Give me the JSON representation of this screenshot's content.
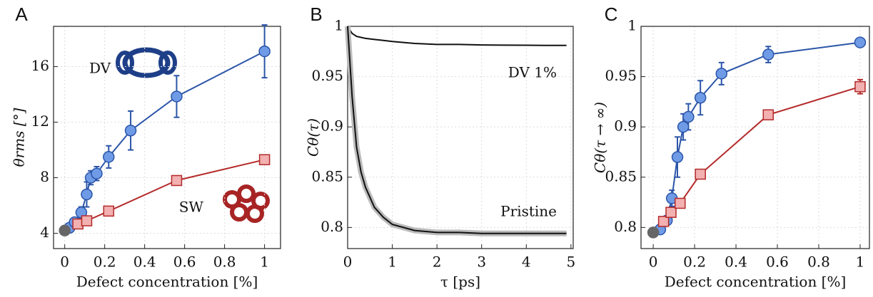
{
  "chart_data": [
    {
      "type": "line",
      "title": "A",
      "x_label": "Defect concentration [%]",
      "y_label": "θrms [°]",
      "xlim": [
        -0.056,
        1.08
      ],
      "ylim": [
        2.9,
        18.9
      ],
      "xticks": [
        0,
        0.2,
        0.4,
        0.6,
        0.8,
        1
      ],
      "yticks": [
        4,
        8,
        12,
        16
      ],
      "grid": true,
      "series": [
        {
          "name": "DV",
          "color": "#2b55a8",
          "marker": "circle",
          "marker_color": "#6f9be6",
          "x": [
            0.024,
            0.05,
            0.083,
            0.11,
            0.13,
            0.16,
            0.22,
            0.33,
            0.56,
            1
          ],
          "values": [
            4.4,
            4.8,
            5.5,
            6.8,
            8.0,
            8.3,
            9.5,
            11.4,
            13.85,
            17.1
          ],
          "errors": [
            null,
            null,
            0.4,
            0.9,
            0.5,
            0.5,
            0.8,
            1.4,
            1.5,
            1.9
          ]
        },
        {
          "name": "SW",
          "color": "#b52a2a",
          "marker": "square",
          "marker_color": "#f2b0b0",
          "x": [
            0.066,
            0.11,
            0.22,
            0.56,
            1
          ],
          "values": [
            4.67,
            4.9,
            5.6,
            7.8,
            9.3
          ],
          "errors": [
            null,
            null,
            null,
            null,
            null
          ]
        },
        {
          "color": "#666666",
          "marker": "circle",
          "marker_color": "#666666",
          "x": [
            0
          ],
          "values": [
            4.2
          ],
          "errors": [
            null
          ]
        }
      ]
    },
    {
      "type": "line",
      "title": "B",
      "x_label": "τ [ps]",
      "y_label": "Cθ(τ)",
      "xlim": [
        0,
        5.05
      ],
      "ylim": [
        0.779,
        1
      ],
      "xticks": [
        0,
        1,
        2,
        3,
        4,
        5
      ],
      "yticks": [
        0.8,
        0.85,
        0.9,
        0.95,
        1
      ],
      "grid": true,
      "x": [
        0,
        0.1,
        0.2,
        0.3,
        0.4,
        0.6,
        0.8,
        1,
        1.5,
        2,
        2.5,
        3,
        3.5,
        4,
        4.5,
        4.9
      ],
      "series": [
        {
          "name": "DV 1%",
          "color": "#111111",
          "values": [
            1,
            0.993,
            0.99,
            0.989,
            0.988,
            0.987,
            0.986,
            0.985,
            0.983,
            0.982,
            0.982,
            0.9815,
            0.9813,
            0.9812,
            0.981,
            0.981
          ]
        },
        {
          "name": "Pristine",
          "color": "#111111",
          "band": true,
          "values": [
            1,
            0.93,
            0.88,
            0.855,
            0.84,
            0.82,
            0.81,
            0.803,
            0.797,
            0.795,
            0.795,
            0.794,
            0.794,
            0.794,
            0.794,
            0.794
          ]
        }
      ]
    },
    {
      "type": "line",
      "title": "C",
      "x_label": "Defect concentration [%]",
      "y_label": "Cθ(τ → ∞)",
      "xlim": [
        -0.059,
        1.045
      ],
      "ylim": [
        0.779,
        1
      ],
      "xticks": [
        0,
        0.2,
        0.4,
        0.6,
        0.8,
        1
      ],
      "yticks": [
        0.8,
        0.85,
        0.9,
        0.95,
        1
      ],
      "grid": true,
      "series": [
        {
          "color": "#2b55a8",
          "marker": "circle",
          "marker_color": "#6f9be6",
          "x": [
            0.034,
            0.066,
            0.09,
            0.117,
            0.145,
            0.17,
            0.228,
            0.33,
            0.556,
            1
          ],
          "values": [
            0.798,
            0.807,
            0.829,
            0.87,
            0.9,
            0.91,
            0.929,
            0.953,
            0.972,
            0.984
          ],
          "errors": [
            null,
            null,
            0.008,
            0.02,
            0.013,
            0.013,
            0.017,
            0.011,
            0.008,
            null
          ]
        },
        {
          "color": "#b52a2a",
          "marker": "square",
          "marker_color": "#f2b0b0",
          "x": [
            0.05,
            0.086,
            0.13,
            0.228,
            0.556,
            1
          ],
          "values": [
            0.806,
            0.815,
            0.824,
            0.853,
            0.912,
            0.94
          ],
          "errors": [
            null,
            null,
            null,
            null,
            null,
            0.007
          ]
        },
        {
          "color": "#666666",
          "marker": "circle",
          "marker_color": "#666666",
          "x": [
            0
          ],
          "values": [
            0.795
          ],
          "errors": [
            null
          ]
        }
      ]
    }
  ]
}
